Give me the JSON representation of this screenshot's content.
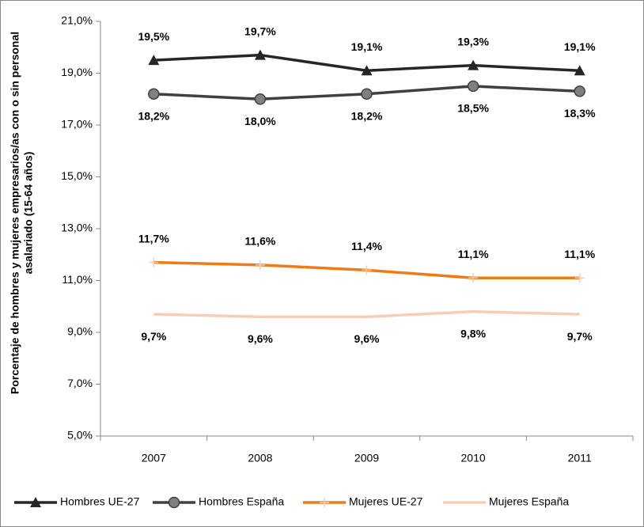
{
  "chart_data": {
    "type": "line",
    "y_label": [
      "Porcentaje de hombres y mujeres empresarios/as con o sin personal",
      "asalariado (15-64 años)"
    ],
    "categories": [
      "2007",
      "2008",
      "2009",
      "2010",
      "2011"
    ],
    "ylim": [
      5,
      21
    ],
    "yticks": [
      {
        "value": 5,
        "label": "5,0%"
      },
      {
        "value": 7,
        "label": "7,0%"
      },
      {
        "value": 9,
        "label": "9,0%"
      },
      {
        "value": 11,
        "label": "11,0%"
      },
      {
        "value": 13,
        "label": "13,0%"
      },
      {
        "value": 15,
        "label": "15,0%"
      },
      {
        "value": 17,
        "label": "17,0%"
      },
      {
        "value": 19,
        "label": "19,0%"
      },
      {
        "value": 21,
        "label": "21,0%"
      }
    ],
    "grid": false,
    "legend": "bottom",
    "series": [
      {
        "name": "Hombres UE-27",
        "color": "#262626",
        "marker": "triangle",
        "label_side": "above",
        "values": [
          19.5,
          19.7,
          19.1,
          19.3,
          19.1
        ],
        "value_labels": [
          "19,5%",
          "19,7%",
          "19,1%",
          "19,3%",
          "19,1%"
        ]
      },
      {
        "name": "Hombres España",
        "color": "#404040",
        "marker": "circle",
        "label_side": "below",
        "values": [
          18.2,
          18.0,
          18.2,
          18.5,
          18.3
        ],
        "value_labels": [
          "18,2%",
          "18,0%",
          "18,2%",
          "18,5%",
          "18,3%"
        ]
      },
      {
        "name": "Mujeres UE-27",
        "color": "#f07b16",
        "marker": "plus",
        "label_side": "above",
        "values": [
          11.7,
          11.6,
          11.4,
          11.1,
          11.1
        ],
        "value_labels": [
          "11,7%",
          "11,6%",
          "11,4%",
          "11,1%",
          "11,1%"
        ]
      },
      {
        "name": "Mujeres España",
        "color": "#f9cdb5",
        "marker": "none",
        "label_side": "below",
        "values": [
          9.7,
          9.6,
          9.6,
          9.8,
          9.7
        ],
        "value_labels": [
          "9,7%",
          "9,6%",
          "9,6%",
          "9,8%",
          "9,7%"
        ]
      }
    ]
  }
}
